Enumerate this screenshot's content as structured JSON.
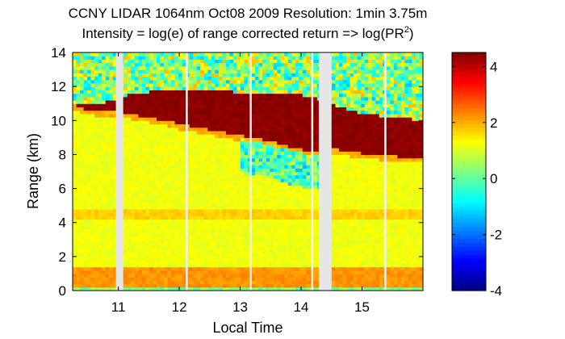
{
  "chart_data": {
    "type": "heatmap",
    "title_line1": "CCNY LIDAR 1064nm Oct08 2009 Resolution: 1min 3.75m",
    "title_line2_prefix": "Intensity = log(e) of range corrected return => log(PR",
    "title_line2_sup": "2",
    "title_line2_suffix": ")",
    "xlabel": "Local Time",
    "ylabel": "Range (km)",
    "xlim": [
      10.25,
      16.0
    ],
    "ylim": [
      0,
      14
    ],
    "xticks": [
      11,
      12,
      13,
      14,
      15
    ],
    "yticks": [
      0,
      2,
      4,
      6,
      8,
      10,
      12,
      14
    ],
    "colorbar": {
      "range": [
        -4,
        4.5
      ],
      "ticks": [
        4,
        2,
        0,
        -2,
        -4
      ],
      "colormap": "jet"
    },
    "data_gaps_hours": [
      [
        10.96,
        11.08
      ],
      [
        14.29,
        14.5
      ]
    ],
    "thin_gap_lines_hours": [
      12.12,
      13.17,
      14.18,
      15.38
    ],
    "cloud_layer": {
      "times": [
        10.25,
        10.4,
        10.6,
        10.8,
        11.0,
        11.2,
        11.5,
        11.8,
        12.0,
        12.3,
        12.6,
        12.9,
        13.2,
        13.5,
        13.8,
        14.0,
        14.2,
        14.5,
        14.8,
        15.0,
        15.3,
        15.6,
        15.8,
        16.0
      ],
      "base_km": [
        11.0,
        10.7,
        10.6,
        10.6,
        10.5,
        10.4,
        10.2,
        10.0,
        9.8,
        9.6,
        9.4,
        9.2,
        9.0,
        8.8,
        8.5,
        8.3,
        8.1,
        8.4,
        8.2,
        8.1,
        8.0,
        7.9,
        7.8,
        7.8
      ],
      "top_km": [
        11.0,
        11.0,
        11.0,
        11.1,
        11.3,
        11.6,
        11.7,
        11.8,
        11.8,
        11.8,
        11.8,
        11.7,
        11.7,
        11.6,
        11.5,
        11.5,
        11.4,
        11.0,
        10.6,
        10.4,
        10.3,
        10.2,
        10.1,
        10.0
      ],
      "intensity": 4.4
    },
    "aerosol_features": {
      "surface_layer_top_km": 1.4,
      "surface_intensity": 2.2,
      "band_4_5_km_intensity": 1.7,
      "free_troposphere_intensity": 1.2,
      "above_cloud_intensity": 0.3
    }
  }
}
